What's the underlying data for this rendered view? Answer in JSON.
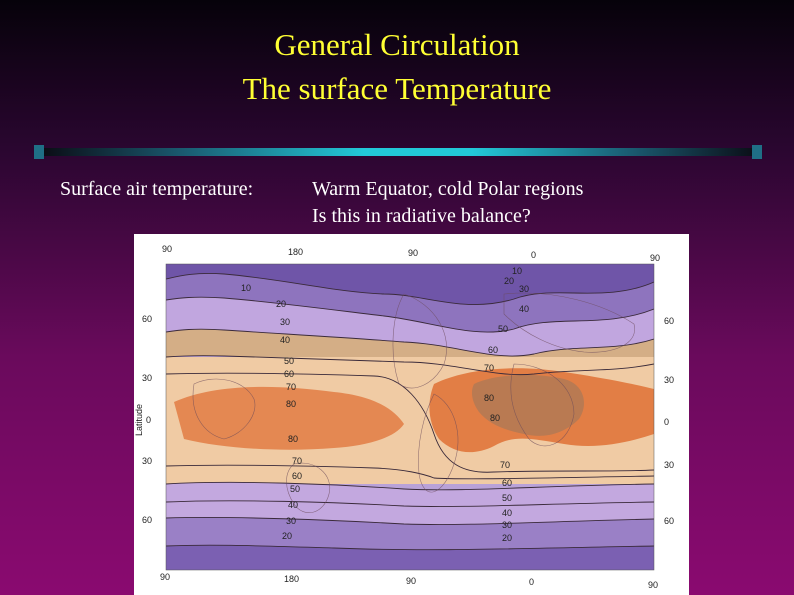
{
  "title_line1": "General Circulation",
  "title_line2": "The surface Temperature",
  "text": {
    "label": "Surface air temperature:",
    "line1": "Warm Equator, cold Polar regions",
    "line2": "Is this in radiative balance?"
  },
  "map": {
    "top_longitudes": [
      "90",
      "180",
      "90",
      "0",
      "90"
    ],
    "bottom_longitudes": [
      "90",
      "180",
      "90",
      "0",
      "90"
    ],
    "left_latitudes": [
      "60",
      "30",
      "0",
      "30",
      "60"
    ],
    "right_latitudes": [
      "60",
      "30",
      "0",
      "30",
      "60"
    ],
    "axis_label": "Latitude",
    "isotherms_left": [
      "10",
      "20",
      "30",
      "40",
      "50",
      "60",
      "70",
      "80",
      "80",
      "70",
      "60",
      "50",
      "40",
      "30",
      "20"
    ],
    "isotherms_right": [
      "10",
      "20",
      "30",
      "40",
      "50",
      "60",
      "70",
      "80",
      "80",
      "70",
      "60",
      "50",
      "40",
      "30",
      "20"
    ],
    "colors": {
      "cold_purple": "#7a5fb0",
      "purple": "#9a7fc4",
      "lavender": "#c7aee0",
      "tan": "#d8b690",
      "peach": "#efc9a0",
      "orange": "#e88a50",
      "brown": "#b7845f"
    }
  }
}
